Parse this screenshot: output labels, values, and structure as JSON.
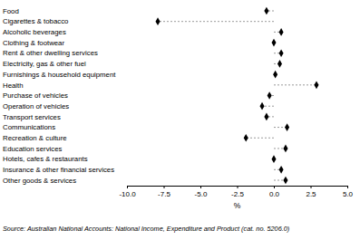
{
  "chart_data": {
    "type": "dot",
    "orientation": "horizontal",
    "categories": [
      "Food",
      "Cigarettes & tobacco",
      "Alcoholic beverages",
      "Clothing & footwear",
      "Rent & other dwelling services",
      "Electricity, gas & other fuel",
      "Furnishings & household equipment",
      "Health",
      "Purchase of vehicles",
      "Operation of vehicles",
      "Transport services",
      "Communications",
      "Recreation & culture",
      "Education services",
      "Hotels, cafes & restaurants",
      "Insurance & other financial services",
      "Other goods & services"
    ],
    "values": [
      -0.5,
      -7.9,
      0.5,
      0.0,
      0.5,
      0.4,
      0.1,
      2.9,
      -0.3,
      -0.8,
      -0.5,
      0.9,
      -1.9,
      0.8,
      0.0,
      0.5,
      0.8
    ],
    "color": "#000000",
    "marker": "diamond",
    "line_style": "dashed",
    "xlabel": "%",
    "xlim": [
      -10,
      5
    ],
    "xticks": [
      {
        "value": -10,
        "label": "-10.0"
      },
      {
        "value": -7.5,
        "label": "-7.5"
      },
      {
        "value": -5,
        "label": "-5.0"
      },
      {
        "value": -2.5,
        "label": "-2.5"
      },
      {
        "value": 0,
        "label": "0.0"
      },
      {
        "value": 2.5,
        "label": "2.5"
      },
      {
        "value": 5,
        "label": "5.0"
      }
    ],
    "grid": false,
    "annotations": [
      "Source: Australian National Accounts: National Income, Expenditure and Product (cat. no. 5206.0)"
    ]
  }
}
